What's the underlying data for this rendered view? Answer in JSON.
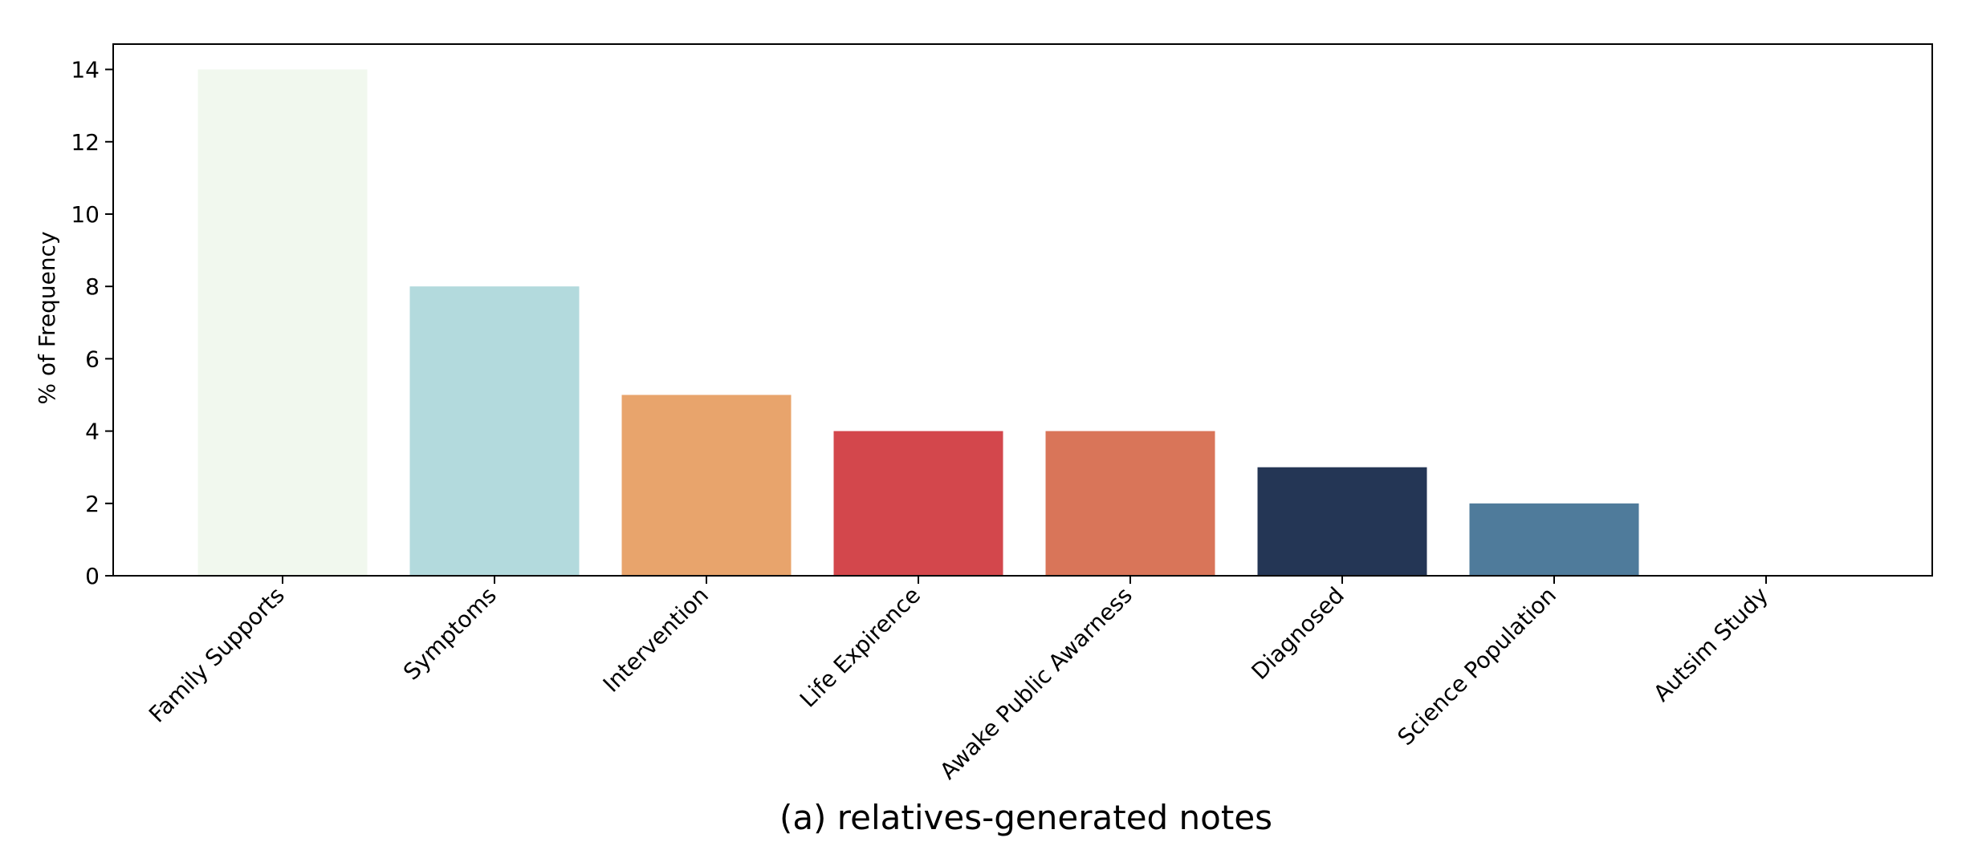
{
  "chart_data": {
    "type": "bar",
    "categories": [
      "Family Supports",
      "Symptoms",
      "Intervention",
      "Life Expirence",
      "Awake Public Awarness",
      "Diagnosed",
      "Science Population",
      "Autsim Study"
    ],
    "values": [
      14,
      8,
      5,
      4,
      4,
      3,
      2,
      0
    ],
    "colors": [
      "#f1f8ee",
      "#b3dadd",
      "#e8a46c",
      "#d3474c",
      "#d97559",
      "#243655",
      "#4f7b9b",
      "#ffffff"
    ],
    "xlabel": "",
    "ylabel": "% of Frequency",
    "ylim": [
      0,
      14.7
    ],
    "yticks": [
      "0",
      "2",
      "4",
      "6",
      "8",
      "10",
      "12",
      "14"
    ],
    "caption": "(a) relatives-generated notes",
    "grid": false,
    "legend": "none"
  }
}
